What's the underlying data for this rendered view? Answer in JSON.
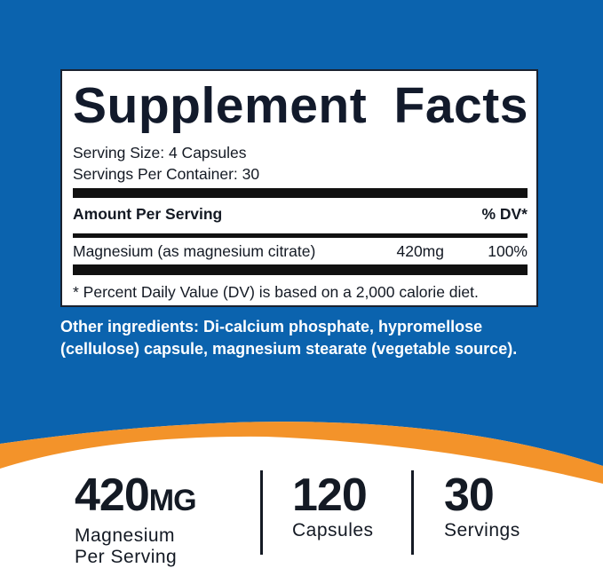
{
  "colors": {
    "background_blue": "#0b63ae",
    "accent_orange": "#f3932a",
    "text_dark": "#141a24"
  },
  "label": {
    "title": "Supplement Facts",
    "serving_size": "Serving Size: 4 Capsules",
    "servings_per_container": "Servings Per Container: 30",
    "amount_header": "Amount Per Serving",
    "dv_header": "% DV*",
    "rows": [
      {
        "name": "Magnesium (as magnesium citrate)",
        "amount": "420mg",
        "dv": "100%"
      }
    ],
    "footnote": "* Percent Daily Value (DV) is based on a 2,000 calorie diet."
  },
  "other_ingredients": {
    "line1": "Other ingredients: Di-calcium phosphate, hypromellose",
    "line2": "(cellulose) capsule, magnesium stearate (vegetable source)."
  },
  "stats": [
    {
      "value": "420",
      "unit": "MG",
      "line1": "Magnesium",
      "line2": "Per Serving"
    },
    {
      "value": "120",
      "line1": "Capsules"
    },
    {
      "value": "30",
      "line1": "Servings"
    }
  ]
}
